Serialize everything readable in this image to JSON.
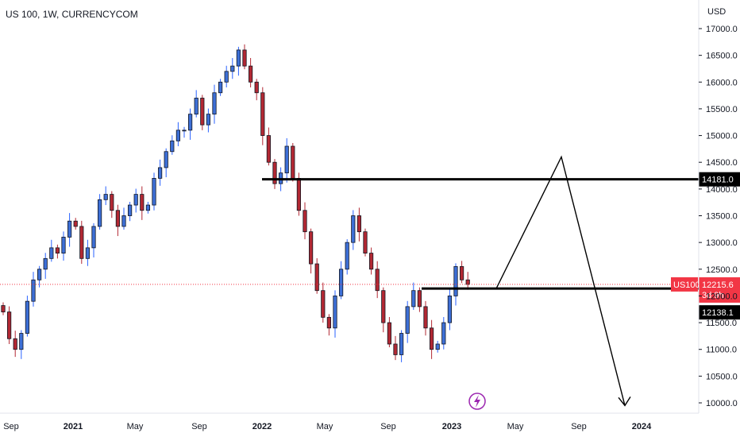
{
  "header": {
    "symbol": "US 100, 1W, CURRENCYCOM"
  },
  "price_axis": {
    "currency": "USD"
  },
  "colors": {
    "up": "#2962ff",
    "up_body": "#3d6fd6",
    "down": "#b22833",
    "outline": "#131722",
    "current": "#f23645",
    "drawing": "#000000",
    "flash": "#9c27b0"
  },
  "chart_data": {
    "type": "candlestick",
    "title": "US 100, 1W, CURRENCYCOM",
    "ylabel": "USD",
    "ylim": [
      9850,
      17250
    ],
    "yticks": [
      10000,
      10500,
      11000,
      11500,
      12000,
      12500,
      13000,
      13500,
      14000,
      14500,
      15000,
      15500,
      16000,
      16500,
      17000
    ],
    "x_axis": [
      {
        "label": "Sep",
        "bold": false
      },
      {
        "label": "2021",
        "bold": true
      },
      {
        "label": "May",
        "bold": false
      },
      {
        "label": "Sep",
        "bold": false
      },
      {
        "label": "2022",
        "bold": true
      },
      {
        "label": "May",
        "bold": false
      },
      {
        "label": "Sep",
        "bold": false
      },
      {
        "label": "2023",
        "bold": true
      },
      {
        "label": "May",
        "bold": false
      },
      {
        "label": "Sep",
        "bold": false
      },
      {
        "label": "2024",
        "bold": true
      }
    ],
    "grid": false,
    "current_price": {
      "symbol": "US100",
      "value": "12215.6",
      "countdown": "3d 9h",
      "numeric": 12215.6
    },
    "levels": [
      {
        "label": "14181.0",
        "value": 14181.0
      },
      {
        "label": "12138.1",
        "value": 12138.1
      }
    ],
    "close_path": [
      11700,
      11200,
      11000,
      11300,
      11900,
      12300,
      12500,
      12700,
      12900,
      12800,
      13100,
      13400,
      13300,
      12700,
      12900,
      13300,
      13800,
      13900,
      13600,
      13300,
      13500,
      13700,
      13900,
      13600,
      13700,
      14200,
      14400,
      14700,
      14900,
      15100,
      15100,
      15400,
      15700,
      15200,
      15400,
      15800,
      16000,
      16200,
      16300,
      16600,
      16300,
      16000,
      15800,
      15000,
      14500,
      14100,
      14300,
      14800,
      14200,
      13600,
      13200,
      12600,
      12100,
      11600,
      11400,
      12000,
      12500,
      13000,
      13500,
      13200,
      12800,
      12500,
      12100,
      11500,
      11100,
      10900,
      11300,
      11800,
      12100,
      11800,
      11400,
      11000,
      11100,
      11500,
      12000,
      12550,
      12300,
      12215.6
    ],
    "annotations": [
      {
        "type": "path",
        "points": [
          [
            "2023-03",
            12138.1
          ],
          [
            "2023-08",
            14600
          ],
          [
            "2023-12",
            9950
          ]
        ],
        "arrow": true
      }
    ]
  }
}
